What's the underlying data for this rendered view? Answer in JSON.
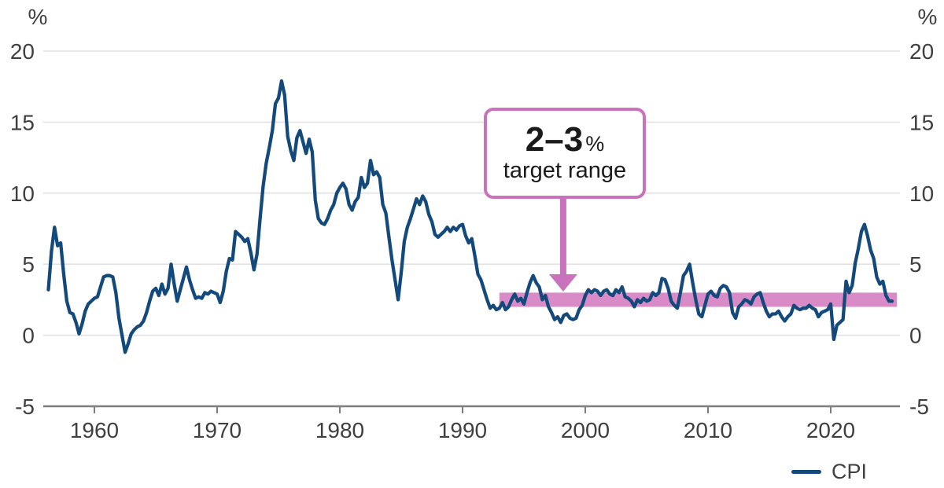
{
  "page": {
    "background": "#FFFFFF"
  },
  "axis": {
    "unit_left": "%",
    "unit_right": "%"
  },
  "legend": {
    "label": "CPI"
  },
  "annotation": {
    "range": "2–3",
    "unit": "%",
    "label": "target range"
  },
  "colors": {
    "line": "#14497C",
    "band": "#D88BC7",
    "annotation_border": "#C873BC",
    "arrow": "#C873BC",
    "grid": "#E2E2E2",
    "axis": "#7D7D7D",
    "tick_text": "#3F3F3F"
  },
  "chart_data": {
    "type": "line",
    "title": "",
    "xlabel": "",
    "ylabel": "%",
    "grid": true,
    "legend_position": "bottom-right",
    "x_ticks": [
      1960,
      1970,
      1980,
      1990,
      2000,
      2010,
      2020
    ],
    "y_ticks": [
      20,
      15,
      10,
      5,
      0,
      -5
    ],
    "xlim": [
      1955.9,
      2025.6
    ],
    "ylim": [
      -5,
      21.5
    ],
    "target_band": {
      "y_from": 2,
      "y_to": 3,
      "x_from": 1993,
      "x_to": 2025.4,
      "color": "#D88BC7"
    },
    "annotation_arrow": {
      "x": 1998.2,
      "color": "#C873BC"
    },
    "series": [
      {
        "name": "CPI",
        "color": "#14497C",
        "points": [
          [
            1956.25,
            3.2
          ],
          [
            1956.5,
            5.9
          ],
          [
            1956.75,
            7.6
          ],
          [
            1957,
            6.3
          ],
          [
            1957.25,
            6.5
          ],
          [
            1957.5,
            4.3
          ],
          [
            1957.75,
            2.4
          ],
          [
            1958,
            1.6
          ],
          [
            1958.25,
            1.5
          ],
          [
            1958.5,
            0.9
          ],
          [
            1958.75,
            0.1
          ],
          [
            1959,
            0.8
          ],
          [
            1959.25,
            1.7
          ],
          [
            1959.5,
            2.2
          ],
          [
            1959.75,
            2.4
          ],
          [
            1960,
            2.6
          ],
          [
            1960.25,
            2.7
          ],
          [
            1960.5,
            3.4
          ],
          [
            1960.75,
            4.1
          ],
          [
            1961,
            4.2
          ],
          [
            1961.25,
            4.2
          ],
          [
            1961.5,
            4.1
          ],
          [
            1961.75,
            3.0
          ],
          [
            1962,
            1.2
          ],
          [
            1962.25,
            0.0
          ],
          [
            1962.5,
            -1.2
          ],
          [
            1962.75,
            -0.6
          ],
          [
            1963,
            0.1
          ],
          [
            1963.25,
            0.4
          ],
          [
            1963.5,
            0.6
          ],
          [
            1963.75,
            0.7
          ],
          [
            1964,
            1.0
          ],
          [
            1964.25,
            1.6
          ],
          [
            1964.5,
            2.4
          ],
          [
            1964.75,
            3.1
          ],
          [
            1965,
            3.3
          ],
          [
            1965.25,
            2.8
          ],
          [
            1965.5,
            3.6
          ],
          [
            1965.75,
            2.9
          ],
          [
            1966,
            3.3
          ],
          [
            1966.25,
            5.0
          ],
          [
            1966.5,
            3.6
          ],
          [
            1966.75,
            2.4
          ],
          [
            1967,
            3.2
          ],
          [
            1967.25,
            4.0
          ],
          [
            1967.5,
            4.8
          ],
          [
            1967.75,
            3.9
          ],
          [
            1968,
            3.2
          ],
          [
            1968.25,
            2.6
          ],
          [
            1968.5,
            2.7
          ],
          [
            1968.75,
            2.6
          ],
          [
            1969,
            3.0
          ],
          [
            1969.25,
            2.9
          ],
          [
            1969.5,
            3.1
          ],
          [
            1969.75,
            3.0
          ],
          [
            1970,
            2.9
          ],
          [
            1970.25,
            2.3
          ],
          [
            1970.5,
            3.1
          ],
          [
            1970.75,
            4.5
          ],
          [
            1971,
            5.4
          ],
          [
            1971.25,
            5.3
          ],
          [
            1971.5,
            7.3
          ],
          [
            1971.75,
            7.1
          ],
          [
            1972,
            6.9
          ],
          [
            1972.25,
            6.6
          ],
          [
            1972.5,
            6.8
          ],
          [
            1972.75,
            5.8
          ],
          [
            1973,
            4.6
          ],
          [
            1973.25,
            5.7
          ],
          [
            1973.5,
            8.2
          ],
          [
            1973.75,
            10.5
          ],
          [
            1974,
            12.1
          ],
          [
            1974.25,
            13.2
          ],
          [
            1974.5,
            14.4
          ],
          [
            1974.75,
            16.3
          ],
          [
            1975,
            16.7
          ],
          [
            1975.25,
            17.9
          ],
          [
            1975.5,
            16.9
          ],
          [
            1975.75,
            14.0
          ],
          [
            1976,
            13.0
          ],
          [
            1976.25,
            12.3
          ],
          [
            1976.5,
            13.9
          ],
          [
            1976.75,
            14.4
          ],
          [
            1977,
            13.6
          ],
          [
            1977.25,
            12.8
          ],
          [
            1977.5,
            13.8
          ],
          [
            1977.75,
            12.9
          ],
          [
            1978,
            9.5
          ],
          [
            1978.25,
            8.2
          ],
          [
            1978.5,
            7.9
          ],
          [
            1978.75,
            7.8
          ],
          [
            1979,
            8.2
          ],
          [
            1979.25,
            8.8
          ],
          [
            1979.5,
            9.2
          ],
          [
            1979.75,
            10.0
          ],
          [
            1980,
            10.4
          ],
          [
            1980.25,
            10.7
          ],
          [
            1980.5,
            10.3
          ],
          [
            1980.75,
            9.2
          ],
          [
            1981,
            8.8
          ],
          [
            1981.25,
            9.4
          ],
          [
            1981.5,
            9.7
          ],
          [
            1981.75,
            11.1
          ],
          [
            1982,
            10.4
          ],
          [
            1982.25,
            10.7
          ],
          [
            1982.5,
            12.3
          ],
          [
            1982.75,
            11.3
          ],
          [
            1983,
            11.5
          ],
          [
            1983.25,
            11.1
          ],
          [
            1983.5,
            9.2
          ],
          [
            1983.75,
            8.6
          ],
          [
            1984,
            6.9
          ],
          [
            1984.25,
            5.3
          ],
          [
            1984.5,
            3.9
          ],
          [
            1984.75,
            2.5
          ],
          [
            1985,
            4.4
          ],
          [
            1985.25,
            6.6
          ],
          [
            1985.5,
            7.6
          ],
          [
            1985.75,
            8.2
          ],
          [
            1986,
            8.9
          ],
          [
            1986.25,
            9.6
          ],
          [
            1986.5,
            9.2
          ],
          [
            1986.75,
            9.8
          ],
          [
            1987,
            9.4
          ],
          [
            1987.25,
            8.5
          ],
          [
            1987.5,
            8.0
          ],
          [
            1987.75,
            7.1
          ],
          [
            1988,
            6.9
          ],
          [
            1988.25,
            7.1
          ],
          [
            1988.5,
            7.3
          ],
          [
            1988.75,
            7.6
          ],
          [
            1989,
            7.3
          ],
          [
            1989.25,
            7.6
          ],
          [
            1989.5,
            7.4
          ],
          [
            1989.75,
            7.7
          ],
          [
            1990,
            7.8
          ],
          [
            1990.25,
            7.0
          ],
          [
            1990.5,
            6.5
          ],
          [
            1990.75,
            6.8
          ],
          [
            1991,
            5.6
          ],
          [
            1991.25,
            4.3
          ],
          [
            1991.5,
            3.9
          ],
          [
            1991.75,
            3.2
          ],
          [
            1992,
            2.5
          ],
          [
            1992.25,
            1.9
          ],
          [
            1992.5,
            2.1
          ],
          [
            1992.75,
            1.8
          ],
          [
            1993,
            1.9
          ],
          [
            1993.25,
            2.3
          ],
          [
            1993.5,
            1.8
          ],
          [
            1993.75,
            2.0
          ],
          [
            1994,
            2.5
          ],
          [
            1994.25,
            2.9
          ],
          [
            1994.5,
            2.4
          ],
          [
            1994.75,
            2.6
          ],
          [
            1995,
            2.2
          ],
          [
            1995.25,
            3.0
          ],
          [
            1995.5,
            3.7
          ],
          [
            1995.75,
            4.2
          ],
          [
            1996,
            3.7
          ],
          [
            1996.25,
            3.4
          ],
          [
            1996.5,
            2.5
          ],
          [
            1996.75,
            2.8
          ],
          [
            1997,
            2.0
          ],
          [
            1997.25,
            1.6
          ],
          [
            1997.5,
            1.1
          ],
          [
            1997.75,
            1.3
          ],
          [
            1998,
            0.9
          ],
          [
            1998.25,
            1.4
          ],
          [
            1998.5,
            1.5
          ],
          [
            1998.75,
            1.2
          ],
          [
            1999,
            1.1
          ],
          [
            1999.25,
            1.2
          ],
          [
            1999.5,
            1.8
          ],
          [
            1999.75,
            2.1
          ],
          [
            2000,
            2.8
          ],
          [
            2000.25,
            3.2
          ],
          [
            2000.5,
            3.0
          ],
          [
            2000.75,
            3.2
          ],
          [
            2001,
            3.1
          ],
          [
            2001.25,
            2.8
          ],
          [
            2001.5,
            3.1
          ],
          [
            2001.75,
            3.2
          ],
          [
            2002,
            2.9
          ],
          [
            2002.25,
            2.8
          ],
          [
            2002.5,
            3.2
          ],
          [
            2002.75,
            3.0
          ],
          [
            2003,
            3.4
          ],
          [
            2003.25,
            2.7
          ],
          [
            2003.5,
            2.6
          ],
          [
            2003.75,
            2.4
          ],
          [
            2004,
            2.0
          ],
          [
            2004.25,
            2.5
          ],
          [
            2004.5,
            2.3
          ],
          [
            2004.75,
            2.6
          ],
          [
            2005,
            2.4
          ],
          [
            2005.25,
            2.5
          ],
          [
            2005.5,
            3.0
          ],
          [
            2005.75,
            2.8
          ],
          [
            2006,
            3.0
          ],
          [
            2006.25,
            4.0
          ],
          [
            2006.5,
            3.9
          ],
          [
            2006.75,
            3.3
          ],
          [
            2007,
            2.4
          ],
          [
            2007.25,
            2.1
          ],
          [
            2007.5,
            1.9
          ],
          [
            2007.75,
            3.0
          ],
          [
            2008,
            4.2
          ],
          [
            2008.25,
            4.5
          ],
          [
            2008.5,
            5.0
          ],
          [
            2008.75,
            3.7
          ],
          [
            2009,
            2.5
          ],
          [
            2009.25,
            1.5
          ],
          [
            2009.5,
            1.3
          ],
          [
            2009.75,
            2.1
          ],
          [
            2010,
            2.9
          ],
          [
            2010.25,
            3.1
          ],
          [
            2010.5,
            2.8
          ],
          [
            2010.75,
            2.7
          ],
          [
            2011,
            3.3
          ],
          [
            2011.25,
            3.5
          ],
          [
            2011.5,
            3.4
          ],
          [
            2011.75,
            3.0
          ],
          [
            2012,
            1.6
          ],
          [
            2012.25,
            1.2
          ],
          [
            2012.5,
            2.0
          ],
          [
            2012.75,
            2.2
          ],
          [
            2013,
            2.5
          ],
          [
            2013.25,
            2.4
          ],
          [
            2013.5,
            2.2
          ],
          [
            2013.75,
            2.7
          ],
          [
            2014,
            2.9
          ],
          [
            2014.25,
            3.0
          ],
          [
            2014.5,
            2.3
          ],
          [
            2014.75,
            1.7
          ],
          [
            2015,
            1.3
          ],
          [
            2015.25,
            1.5
          ],
          [
            2015.5,
            1.5
          ],
          [
            2015.75,
            1.7
          ],
          [
            2016,
            1.3
          ],
          [
            2016.25,
            1.0
          ],
          [
            2016.5,
            1.3
          ],
          [
            2016.75,
            1.5
          ],
          [
            2017,
            2.1
          ],
          [
            2017.25,
            1.9
          ],
          [
            2017.5,
            1.8
          ],
          [
            2017.75,
            1.9
          ],
          [
            2018,
            1.9
          ],
          [
            2018.25,
            2.1
          ],
          [
            2018.5,
            1.9
          ],
          [
            2018.75,
            1.8
          ],
          [
            2019,
            1.3
          ],
          [
            2019.25,
            1.6
          ],
          [
            2019.5,
            1.7
          ],
          [
            2019.75,
            1.8
          ],
          [
            2020,
            2.2
          ],
          [
            2020.25,
            -0.3
          ],
          [
            2020.5,
            0.7
          ],
          [
            2020.75,
            0.9
          ],
          [
            2021,
            1.1
          ],
          [
            2021.25,
            3.8
          ],
          [
            2021.5,
            3.0
          ],
          [
            2021.75,
            3.5
          ],
          [
            2022,
            5.1
          ],
          [
            2022.25,
            6.1
          ],
          [
            2022.5,
            7.3
          ],
          [
            2022.75,
            7.8
          ],
          [
            2023,
            7.0
          ],
          [
            2023.25,
            6.0
          ],
          [
            2023.5,
            5.4
          ],
          [
            2023.75,
            4.1
          ],
          [
            2024,
            3.6
          ],
          [
            2024.25,
            3.8
          ],
          [
            2024.5,
            2.8
          ],
          [
            2024.75,
            2.4
          ],
          [
            2025,
            2.4
          ]
        ]
      }
    ]
  }
}
